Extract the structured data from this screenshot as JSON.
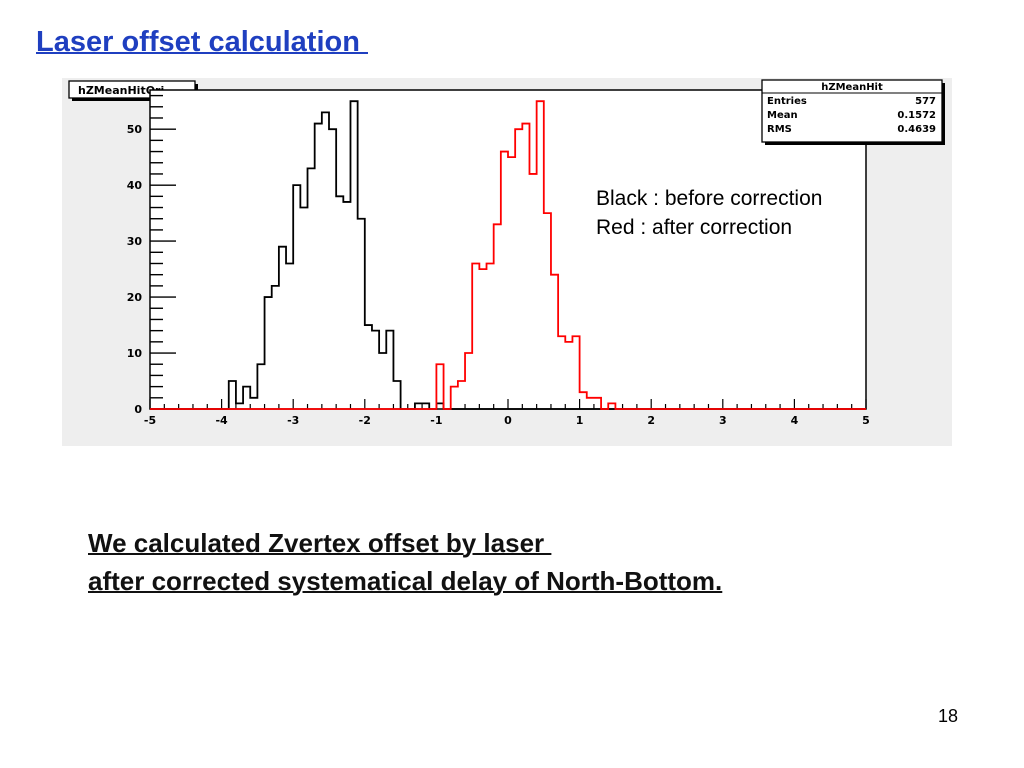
{
  "slide": {
    "title": "Laser offset calculation ",
    "legend_lines": [
      "Black : before correction",
      "Red : after correction"
    ],
    "caption_lines": [
      "We calculated Zvertex offset by laser ",
      "after corrected systematical delay of North-Bottom."
    ],
    "page_number": "18"
  },
  "chart_data": {
    "type": "histogram",
    "title_box_left": "hZMeanHitOri",
    "stats_box": {
      "name": "hZMeanHit",
      "rows": [
        {
          "label": "Entries",
          "value": "577"
        },
        {
          "label": "Mean",
          "value": "0.1572"
        },
        {
          "label": "RMS",
          "value": "0.4639"
        }
      ]
    },
    "xlim": [
      -5,
      5
    ],
    "ylim": [
      0,
      57
    ],
    "x_ticks": [
      -5,
      -4,
      -3,
      -2,
      -1,
      0,
      1,
      2,
      3,
      4,
      5
    ],
    "y_ticks": [
      0,
      10,
      20,
      30,
      40,
      50
    ],
    "bin_width": 0.1,
    "series": [
      {
        "color": "#000000",
        "x_start": -4.0,
        "values": [
          0,
          5,
          1,
          4,
          2,
          8,
          20,
          22,
          29,
          26,
          40,
          36,
          43,
          51,
          53,
          50,
          38,
          37,
          55,
          34,
          15,
          14,
          10,
          14,
          5,
          0,
          0,
          1,
          1,
          0,
          1,
          0
        ]
      },
      {
        "color": "#ff0000",
        "x_start": -1.0,
        "values": [
          8,
          0,
          4,
          5,
          10,
          26,
          25,
          26,
          33,
          46,
          45,
          50,
          51,
          42,
          55,
          35,
          24,
          13,
          12,
          13,
          3,
          2,
          2,
          0,
          1,
          0
        ]
      }
    ]
  }
}
